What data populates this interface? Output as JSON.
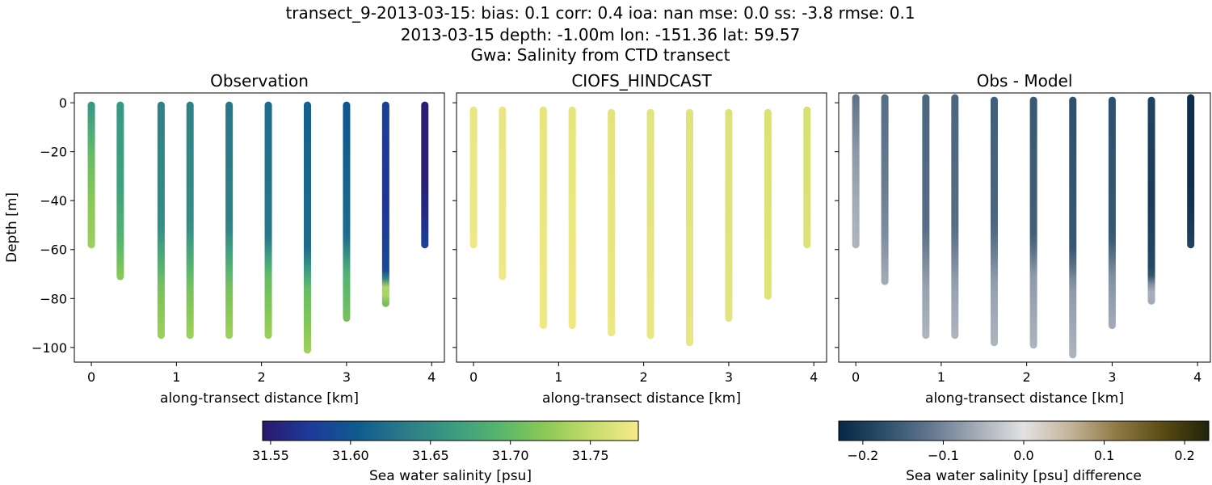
{
  "figure": {
    "title_lines": [
      "transect_9-2013-03-15: bias: 0.1  corr: 0.4  ioa: nan  mse: 0.0  ss: -3.8  rmse: 0.1",
      "2013-03-15 depth: -1.00m lon: -151.36 lat: 59.57",
      "Gwa: Salinity from CTD transect"
    ]
  },
  "chart_data": [
    {
      "type": "scatter",
      "title": "Observation",
      "xlabel": "along-transect distance [km]",
      "ylabel": "Depth [m]",
      "xlim": [
        -0.2,
        4.15
      ],
      "ylim": [
        -106,
        4
      ],
      "xticks": [
        0,
        1,
        2,
        3,
        4
      ],
      "yticks": [
        0,
        -20,
        -40,
        -60,
        -80,
        -100
      ],
      "show_ytick_labels": true,
      "colormap": "haline",
      "value_range": [
        31.545,
        31.78
      ],
      "series": [
        {
          "x": 0.0,
          "depth_top": -1,
          "depth_bottom": -58,
          "profile": [
            [
              -1,
              31.66
            ],
            [
              -20,
              31.7
            ],
            [
              -40,
              31.72
            ],
            [
              -58,
              31.73
            ]
          ]
        },
        {
          "x": 0.34,
          "depth_top": -1,
          "depth_bottom": -71,
          "profile": [
            [
              -1,
              31.66
            ],
            [
              -35,
              31.67
            ],
            [
              -55,
              31.69
            ],
            [
              -71,
              31.72
            ]
          ]
        },
        {
          "x": 0.82,
          "depth_top": -1,
          "depth_bottom": -95,
          "profile": [
            [
              -1,
              31.64
            ],
            [
              -50,
              31.65
            ],
            [
              -75,
              31.71
            ],
            [
              -95,
              31.73
            ]
          ]
        },
        {
          "x": 1.16,
          "depth_top": -1,
          "depth_bottom": -95,
          "profile": [
            [
              -1,
              31.64
            ],
            [
              -50,
              31.65
            ],
            [
              -75,
              31.71
            ],
            [
              -95,
              31.73
            ]
          ]
        },
        {
          "x": 1.62,
          "depth_top": -1,
          "depth_bottom": -95,
          "profile": [
            [
              -1,
              31.63
            ],
            [
              -50,
              31.64
            ],
            [
              -75,
              31.71
            ],
            [
              -95,
              31.73
            ]
          ]
        },
        {
          "x": 2.08,
          "depth_top": -1,
          "depth_bottom": -95,
          "profile": [
            [
              -1,
              31.62
            ],
            [
              -55,
              31.63
            ],
            [
              -70,
              31.7
            ],
            [
              -95,
              31.73
            ]
          ]
        },
        {
          "x": 2.54,
          "depth_top": -1,
          "depth_bottom": -101,
          "profile": [
            [
              -1,
              31.61
            ],
            [
              -60,
              31.62
            ],
            [
              -75,
              31.7
            ],
            [
              -101,
              31.73
            ]
          ]
        },
        {
          "x": 3.0,
          "depth_top": -1,
          "depth_bottom": -88,
          "profile": [
            [
              -1,
              31.6
            ],
            [
              -55,
              31.62
            ],
            [
              -70,
              31.69
            ],
            [
              -88,
              31.71
            ]
          ]
        },
        {
          "x": 3.46,
          "depth_top": -1,
          "depth_bottom": -82,
          "profile": [
            [
              -1,
              31.58
            ],
            [
              -40,
              31.57
            ],
            [
              -70,
              31.59
            ],
            [
              -76,
              31.76
            ],
            [
              -82,
              31.71
            ]
          ]
        },
        {
          "x": 3.92,
          "depth_top": -1,
          "depth_bottom": -58,
          "profile": [
            [
              -1,
              31.55
            ],
            [
              -30,
              31.55
            ],
            [
              -45,
              31.56
            ],
            [
              -58,
              31.58
            ]
          ]
        }
      ]
    },
    {
      "type": "scatter",
      "title": "CIOFS_HINDCAST",
      "xlabel": "along-transect distance [km]",
      "ylabel": "",
      "xlim": [
        -0.2,
        4.15
      ],
      "ylim": [
        -106,
        4
      ],
      "xticks": [
        0,
        1,
        2,
        3,
        4
      ],
      "yticks": [
        0,
        -20,
        -40,
        -60,
        -80,
        -100
      ],
      "show_ytick_labels": false,
      "colormap": "haline",
      "value_range": [
        31.545,
        31.78
      ],
      "series": [
        {
          "x": 0.0,
          "depth_top": -3,
          "depth_bottom": -58,
          "profile": [
            [
              -3,
              31.772
            ],
            [
              -58,
              31.775
            ]
          ]
        },
        {
          "x": 0.34,
          "depth_top": -3,
          "depth_bottom": -71,
          "profile": [
            [
              -3,
              31.772
            ],
            [
              -71,
              31.775
            ]
          ]
        },
        {
          "x": 0.82,
          "depth_top": -3,
          "depth_bottom": -91,
          "profile": [
            [
              -3,
              31.77
            ],
            [
              -91,
              31.775
            ]
          ]
        },
        {
          "x": 1.16,
          "depth_top": -3,
          "depth_bottom": -91,
          "profile": [
            [
              -3,
              31.77
            ],
            [
              -91,
              31.775
            ]
          ]
        },
        {
          "x": 1.62,
          "depth_top": -4,
          "depth_bottom": -94,
          "profile": [
            [
              -4,
              31.768
            ],
            [
              -94,
              31.774
            ]
          ]
        },
        {
          "x": 2.08,
          "depth_top": -4,
          "depth_bottom": -95,
          "profile": [
            [
              -4,
              31.767
            ],
            [
              -95,
              31.772
            ]
          ]
        },
        {
          "x": 2.54,
          "depth_top": -4,
          "depth_bottom": -98,
          "profile": [
            [
              -4,
              31.766
            ],
            [
              -98,
              31.771
            ]
          ]
        },
        {
          "x": 3.0,
          "depth_top": -4,
          "depth_bottom": -88,
          "profile": [
            [
              -4,
              31.764
            ],
            [
              -88,
              31.768
            ]
          ]
        },
        {
          "x": 3.46,
          "depth_top": -4,
          "depth_bottom": -79,
          "profile": [
            [
              -4,
              31.762
            ],
            [
              -79,
              31.766
            ]
          ]
        },
        {
          "x": 3.92,
          "depth_top": -3,
          "depth_bottom": -58,
          "profile": [
            [
              -3,
              31.76
            ],
            [
              -58,
              31.763
            ]
          ]
        }
      ]
    },
    {
      "type": "scatter",
      "title": "Obs - Model",
      "xlabel": "along-transect distance [km]",
      "ylabel": "",
      "xlim": [
        -0.2,
        4.15
      ],
      "ylim": [
        -106,
        4
      ],
      "xticks": [
        0,
        1,
        2,
        3,
        4
      ],
      "yticks": [
        0,
        -20,
        -40,
        -60,
        -80,
        -100
      ],
      "show_ytick_labels": false,
      "colormap": "diff",
      "value_range": [
        -0.23,
        0.23
      ],
      "series": [
        {
          "x": 0.0,
          "depth_top": 2,
          "depth_bottom": -58,
          "profile": [
            [
              2,
              -0.12
            ],
            [
              -20,
              -0.08
            ],
            [
              -40,
              -0.06
            ],
            [
              -58,
              -0.05
            ]
          ]
        },
        {
          "x": 0.34,
          "depth_top": 2,
          "depth_bottom": -73,
          "profile": [
            [
              2,
              -0.13
            ],
            [
              -35,
              -0.11
            ],
            [
              -55,
              -0.09
            ],
            [
              -73,
              -0.06
            ]
          ]
        },
        {
          "x": 0.82,
          "depth_top": 2,
          "depth_bottom": -95,
          "profile": [
            [
              2,
              -0.14
            ],
            [
              -50,
              -0.13
            ],
            [
              -75,
              -0.07
            ],
            [
              -95,
              -0.05
            ]
          ]
        },
        {
          "x": 1.16,
          "depth_top": 2,
          "depth_bottom": -95,
          "profile": [
            [
              2,
              -0.14
            ],
            [
              -50,
              -0.13
            ],
            [
              -75,
              -0.07
            ],
            [
              -95,
              -0.05
            ]
          ]
        },
        {
          "x": 1.62,
          "depth_top": 1,
          "depth_bottom": -98,
          "profile": [
            [
              1,
              -0.15
            ],
            [
              -50,
              -0.14
            ],
            [
              -75,
              -0.07
            ],
            [
              -98,
              -0.05
            ]
          ]
        },
        {
          "x": 2.08,
          "depth_top": 1,
          "depth_bottom": -99,
          "profile": [
            [
              1,
              -0.16
            ],
            [
              -55,
              -0.15
            ],
            [
              -70,
              -0.08
            ],
            [
              -99,
              -0.05
            ]
          ]
        },
        {
          "x": 2.54,
          "depth_top": 1,
          "depth_bottom": -103,
          "profile": [
            [
              1,
              -0.17
            ],
            [
              -60,
              -0.16
            ],
            [
              -75,
              -0.08
            ],
            [
              -103,
              -0.05
            ]
          ]
        },
        {
          "x": 3.0,
          "depth_top": 1,
          "depth_bottom": -91,
          "profile": [
            [
              1,
              -0.17
            ],
            [
              -55,
              -0.16
            ],
            [
              -70,
              -0.09
            ],
            [
              -91,
              -0.06
            ]
          ]
        },
        {
          "x": 3.46,
          "depth_top": 1,
          "depth_bottom": -81,
          "profile": [
            [
              1,
              -0.19
            ],
            [
              -40,
              -0.2
            ],
            [
              -70,
              -0.18
            ],
            [
              -76,
              -0.05
            ],
            [
              -81,
              -0.06
            ]
          ]
        },
        {
          "x": 3.92,
          "depth_top": 2,
          "depth_bottom": -58,
          "profile": [
            [
              2,
              -0.22
            ],
            [
              -30,
              -0.22
            ],
            [
              -45,
              -0.21
            ],
            [
              -58,
              -0.19
            ]
          ]
        }
      ]
    }
  ],
  "colorbars": [
    {
      "label": "Sea water salinity [psu]",
      "range": [
        31.545,
        31.78
      ],
      "ticks": [
        31.55,
        31.6,
        31.65,
        31.7,
        31.75
      ],
      "tick_labels": [
        "31.55",
        "31.60",
        "31.65",
        "31.70",
        "31.75"
      ],
      "colormap": "haline"
    },
    {
      "label": "Sea water salinity [psu] difference",
      "range": [
        -0.23,
        0.23
      ],
      "ticks": [
        -0.2,
        -0.1,
        0.0,
        0.1,
        0.2
      ],
      "tick_labels": [
        "−0.2",
        "−0.1",
        "0.0",
        "0.1",
        "0.2"
      ],
      "colormap": "diff"
    }
  ],
  "colormaps": {
    "haline": [
      "#2a186c",
      "#1d3a9b",
      "#0f5a8f",
      "#2b7a88",
      "#3a9a82",
      "#55b46f",
      "#8ac954",
      "#c6dc6a",
      "#f7ea8b"
    ],
    "diff": [
      "#062745",
      "#2c4f6b",
      "#64788e",
      "#a4adb8",
      "#e2e2e2",
      "#c4b49a",
      "#8f7a46",
      "#5a4b13",
      "#1f220b"
    ]
  },
  "colors": {
    "axes": "#000000",
    "background": "#ffffff"
  }
}
